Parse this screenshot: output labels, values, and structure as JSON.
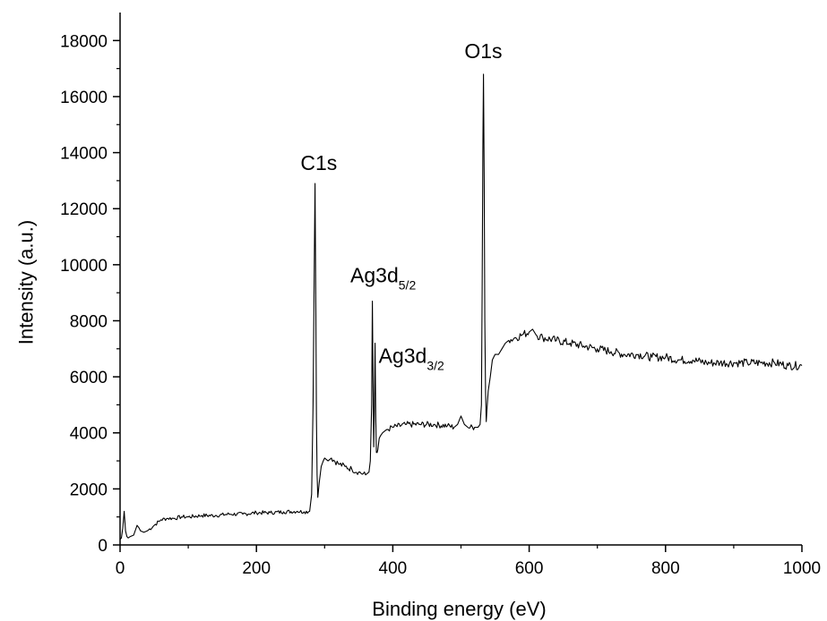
{
  "chart_data": {
    "type": "line",
    "title": "",
    "xlabel": "Binding energy (eV)",
    "ylabel": "Intensity (a.u.)",
    "xlim": [
      0,
      1000
    ],
    "ylim": [
      0,
      19000
    ],
    "x_ticks": [
      0,
      200,
      400,
      600,
      800,
      1000
    ],
    "y_ticks": [
      0,
      2000,
      4000,
      6000,
      8000,
      10000,
      12000,
      14000,
      16000,
      18000
    ],
    "grid": false,
    "legend": "none",
    "line_color": "#000000",
    "series": [
      {
        "x": [
          0,
          2,
          4,
          6,
          8,
          10,
          12,
          15,
          20,
          25,
          28,
          30,
          35,
          40,
          50,
          60,
          70,
          80,
          90,
          100,
          120,
          140,
          160,
          180,
          200,
          220,
          240,
          260,
          270,
          278,
          281,
          283,
          285,
          286,
          287,
          288,
          289,
          290,
          292,
          295,
          298,
          300,
          305,
          310,
          320,
          330,
          340,
          350,
          360,
          365,
          367,
          369,
          370,
          371,
          372,
          373,
          374,
          375,
          376,
          377,
          378,
          380,
          382,
          385,
          390,
          400,
          420,
          440,
          460,
          480,
          490,
          495,
          500,
          505,
          510,
          520,
          525,
          528,
          530,
          531,
          532,
          533,
          534,
          535,
          536,
          537,
          538,
          540,
          543,
          546,
          550,
          555,
          560,
          565,
          570,
          580,
          590,
          600,
          605,
          610,
          620,
          640,
          660,
          680,
          700,
          720,
          740,
          760,
          780,
          800,
          820,
          840,
          860,
          880,
          900,
          920,
          940,
          960,
          980,
          1000
        ],
        "values": [
          200,
          250,
          600,
          1200,
          500,
          300,
          250,
          300,
          350,
          700,
          600,
          500,
          450,
          500,
          700,
          900,
          950,
          950,
          1000,
          1000,
          1050,
          1050,
          1100,
          1100,
          1150,
          1150,
          1180,
          1200,
          1180,
          1200,
          1800,
          5000,
          10500,
          12900,
          9000,
          4500,
          2500,
          1700,
          2200,
          2800,
          3000,
          3100,
          3000,
          3100,
          2900,
          2800,
          2700,
          2600,
          2500,
          2600,
          3000,
          5000,
          8700,
          6000,
          3500,
          5000,
          7200,
          4500,
          3300,
          3300,
          3400,
          3800,
          3900,
          4000,
          4100,
          4200,
          4300,
          4300,
          4300,
          4250,
          4200,
          4300,
          4600,
          4300,
          4200,
          4200,
          4200,
          4300,
          5000,
          9000,
          14000,
          16800,
          13000,
          8000,
          5500,
          4400,
          4800,
          5500,
          6000,
          6600,
          6800,
          6800,
          7000,
          7200,
          7300,
          7400,
          7500,
          7600,
          7700,
          7500,
          7400,
          7300,
          7200,
          7100,
          7000,
          6900,
          6800,
          6800,
          6700,
          6700,
          6600,
          6600,
          6500,
          6500,
          6500,
          6500,
          6500,
          6500,
          6400,
          6400
        ]
      }
    ],
    "annotations": [
      {
        "text": "C1s",
        "x": 287,
        "y": 12900
      },
      {
        "text": "Ag3d",
        "sub": "5/2",
        "x": 368,
        "y": 8700
      },
      {
        "text": "Ag3d",
        "sub": "3/2",
        "x": 374,
        "y": 7200
      },
      {
        "text": "O1s",
        "x": 534,
        "y": 16800
      }
    ]
  }
}
